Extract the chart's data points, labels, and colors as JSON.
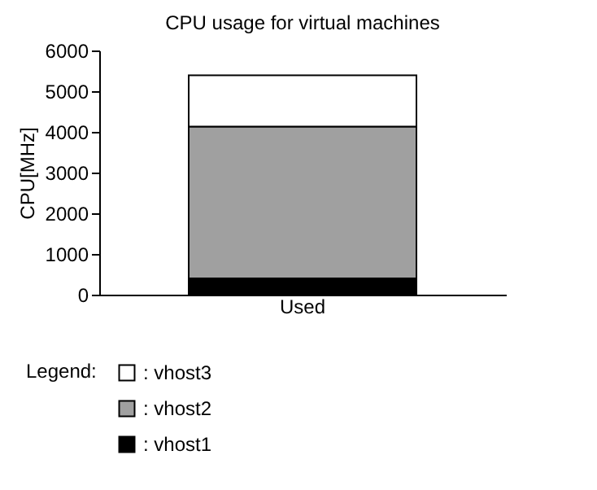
{
  "chart_data": {
    "type": "bar",
    "stacked": true,
    "title": "CPU usage for virtual machines",
    "ylabel": "CPU[MHz]",
    "legend_title": "Legend:",
    "legend": "bottom left",
    "grid": false,
    "categories": [
      "Used"
    ],
    "series": [
      {
        "name": ": vhost1",
        "color": "#000000",
        "values": [
          400
        ]
      },
      {
        "name": ": vhost2",
        "color": "#a0a0a0",
        "values": [
          3730
        ]
      },
      {
        "name": ": vhost3",
        "color": "#ffffff",
        "values": [
          1260
        ]
      }
    ],
    "ylim": [
      0,
      6000
    ],
    "yticks": [
      0,
      1000,
      2000,
      3000,
      4000,
      5000,
      6000
    ]
  }
}
